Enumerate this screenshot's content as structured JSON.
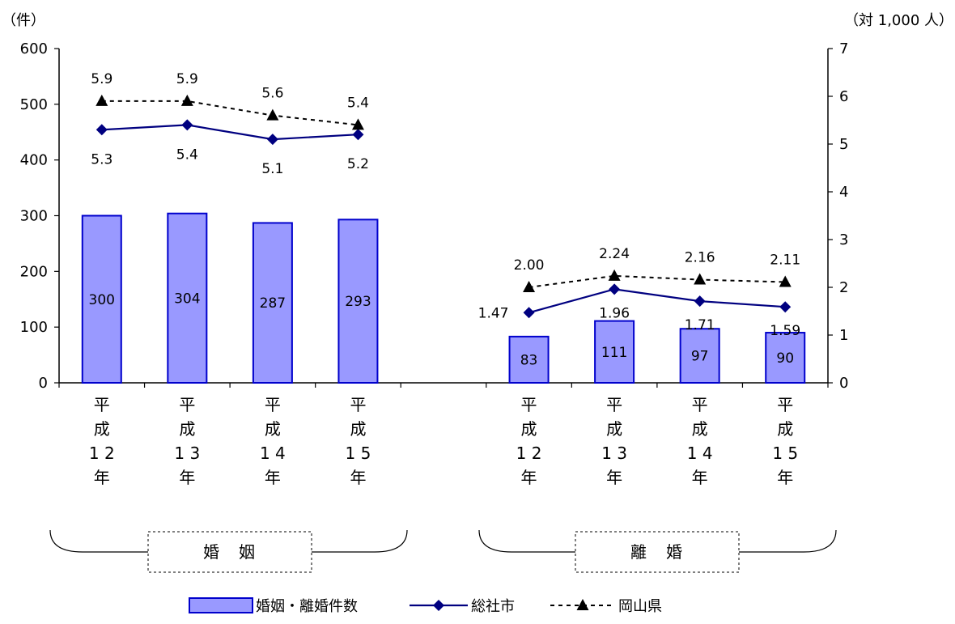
{
  "chart_data": {
    "type": "bar",
    "ylabel_left": "（件）",
    "ylabel_right": "（対 1,000 人）",
    "ylim_left": [
      0,
      600
    ],
    "ylim_right": [
      0,
      7
    ],
    "yticks_left": [
      "0",
      "100",
      "200",
      "300",
      "400",
      "500",
      "600"
    ],
    "yticks_right": [
      "0",
      "1",
      "2",
      "3",
      "4",
      "5",
      "6",
      "7"
    ],
    "groups": [
      {
        "label": "婚　姻",
        "categories": [
          {
            "chars": [
              "平",
              "成",
              "1 2",
              "年"
            ]
          },
          {
            "chars": [
              "平",
              "成",
              "1 3",
              "年"
            ]
          },
          {
            "chars": [
              "平",
              "成",
              "1 4",
              "年"
            ]
          },
          {
            "chars": [
              "平",
              "成",
              "1 5",
              "年"
            ]
          }
        ],
        "bar_values": [
          300,
          304,
          287,
          293
        ],
        "bar_labels": [
          "300",
          "304",
          "287",
          "293"
        ],
        "city_rates": [
          5.3,
          5.4,
          5.1,
          5.2
        ],
        "city_labels": [
          "5.3",
          "5.4",
          "5.1",
          "5.2"
        ],
        "pref_rates": [
          5.9,
          5.9,
          5.6,
          5.4
        ],
        "pref_labels": [
          "5.9",
          "5.9",
          "5.6",
          "5.4"
        ]
      },
      {
        "label": "離　婚",
        "categories": [
          {
            "chars": [
              "平",
              "成",
              "1 2",
              "年"
            ]
          },
          {
            "chars": [
              "平",
              "成",
              "1 3",
              "年"
            ]
          },
          {
            "chars": [
              "平",
              "成",
              "1 4",
              "年"
            ]
          },
          {
            "chars": [
              "平",
              "成",
              "1 5",
              "年"
            ]
          }
        ],
        "bar_values": [
          83,
          111,
          97,
          90
        ],
        "bar_labels": [
          "83",
          "111",
          "97",
          "90"
        ],
        "city_rates": [
          1.47,
          1.96,
          1.71,
          1.59
        ],
        "city_labels": [
          "1.47",
          "1.96",
          "1.71",
          "1.59"
        ],
        "pref_rates": [
          2.0,
          2.24,
          2.16,
          2.11
        ],
        "pref_labels": [
          "2.00",
          "2.24",
          "2.16",
          "2.11"
        ]
      }
    ],
    "series": [
      {
        "name": "婚姻・離婚件数",
        "kind": "bar",
        "axis": "left"
      },
      {
        "name": "総社市",
        "kind": "line",
        "axis": "right"
      },
      {
        "name": "岡山県",
        "kind": "line-dashed",
        "axis": "right"
      }
    ],
    "legend_placement": "bottom-center",
    "grid": false
  },
  "colors": {
    "bar_fill": "#9999ff",
    "bar_stroke": "#0000cc",
    "city_line": "#000080",
    "pref_line": "#000000"
  }
}
